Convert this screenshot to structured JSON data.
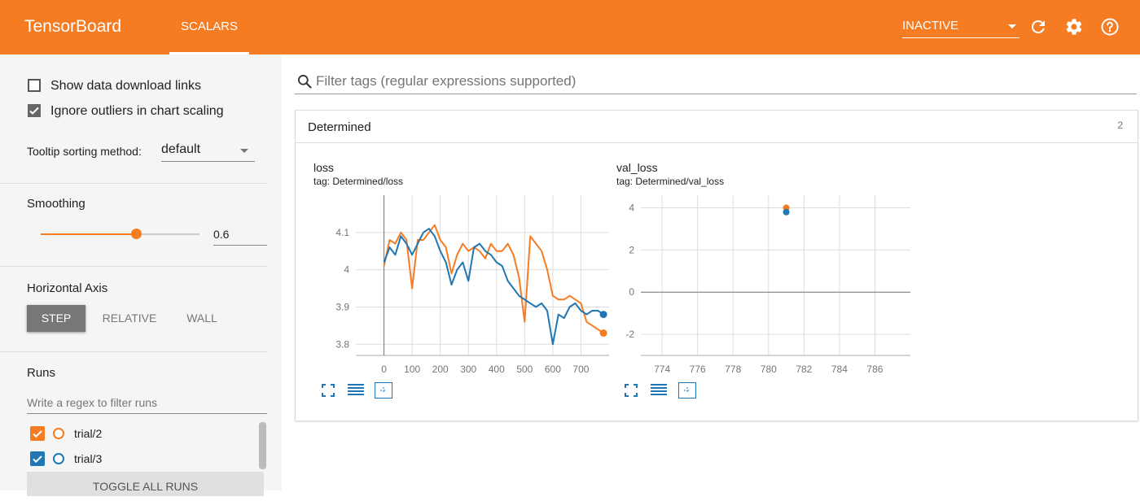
{
  "header": {
    "brand": "TensorBoard",
    "active_tab": "SCALARS",
    "run_state": "INACTIVE",
    "icons": [
      "refresh-icon",
      "settings-icon",
      "help-icon"
    ]
  },
  "sidebar": {
    "show_download_links": {
      "label": "Show data download links",
      "checked": false
    },
    "ignore_outliers": {
      "label": "Ignore outliers in chart scaling",
      "checked": true
    },
    "tooltip_sorting": {
      "label": "Tooltip sorting method:",
      "value": "default"
    },
    "smoothing": {
      "label": "Smoothing",
      "value": "0.6",
      "fraction": 0.6
    },
    "horizontal_axis": {
      "label": "Horizontal Axis",
      "options": [
        "STEP",
        "RELATIVE",
        "WALL"
      ],
      "selected": "STEP"
    },
    "runs": {
      "label": "Runs",
      "filter_placeholder": "Write a regex to filter runs",
      "items": [
        {
          "name": "trial/2",
          "color": "#f57c22",
          "checked": true
        },
        {
          "name": "trial/3",
          "color": "#1f77b4",
          "checked": true
        }
      ],
      "toggle_all": "TOGGLE ALL RUNS"
    }
  },
  "main": {
    "filter_placeholder": "Filter tags (regular expressions supported)",
    "group": {
      "title": "Determined",
      "count": "2"
    }
  },
  "colors": {
    "accent": "#f57c22",
    "trial2": "#f57c22",
    "trial3": "#1f77b4"
  },
  "chart_data": [
    {
      "type": "line",
      "title": "loss",
      "tag": "tag: Determined/loss",
      "x_ticks": [
        "0",
        "100",
        "200",
        "300",
        "400",
        "500",
        "600",
        "700"
      ],
      "y_ticks": [
        "4.1",
        "4",
        "3.9",
        "3.8"
      ],
      "series": [
        {
          "name": "trial/2",
          "color": "#f57c22",
          "x": [
            0,
            20,
            40,
            60,
            80,
            100,
            120,
            140,
            160,
            180,
            200,
            220,
            240,
            260,
            280,
            300,
            320,
            340,
            360,
            380,
            400,
            420,
            440,
            460,
            480,
            500,
            520,
            540,
            560,
            580,
            600,
            620,
            640,
            660,
            680,
            700,
            720,
            740,
            760,
            780
          ],
          "y": [
            4.01,
            4.08,
            4.07,
            4.1,
            4.08,
            3.95,
            4.08,
            4.08,
            4.1,
            4.12,
            4.08,
            4.06,
            3.99,
            4.04,
            4.07,
            4.05,
            4.06,
            4.05,
            4.03,
            4.07,
            4.05,
            4.05,
            4.07,
            4.04,
            3.98,
            3.86,
            4.09,
            4.07,
            4.05,
            4.0,
            3.93,
            3.92,
            3.92,
            3.93,
            3.92,
            3.91,
            3.86,
            3.85,
            3.84,
            3.83
          ]
        },
        {
          "name": "trial/3",
          "color": "#1f77b4",
          "x": [
            0,
            20,
            40,
            60,
            80,
            100,
            120,
            140,
            160,
            180,
            200,
            220,
            240,
            260,
            280,
            300,
            320,
            340,
            360,
            380,
            400,
            420,
            440,
            460,
            480,
            500,
            520,
            540,
            560,
            580,
            600,
            620,
            640,
            660,
            680,
            700,
            720,
            740,
            760,
            780
          ],
          "y": [
            4.02,
            4.06,
            4.04,
            4.09,
            4.07,
            4.04,
            4.07,
            4.1,
            4.11,
            4.09,
            4.05,
            4.02,
            3.96,
            4.0,
            4.02,
            3.97,
            4.06,
            4.07,
            4.05,
            4.04,
            4.02,
            4.01,
            3.97,
            3.95,
            3.93,
            3.92,
            3.91,
            3.9,
            3.91,
            3.89,
            3.8,
            3.88,
            3.87,
            3.9,
            3.91,
            3.89,
            3.88,
            3.89,
            3.89,
            3.88
          ]
        }
      ],
      "xlim": [
        -100,
        800
      ],
      "ylim": [
        3.77,
        4.2
      ]
    },
    {
      "type": "scatter",
      "title": "val_loss",
      "tag": "tag: Determined/val_loss",
      "x_ticks": [
        "774",
        "776",
        "778",
        "780",
        "782",
        "784",
        "786"
      ],
      "y_ticks": [
        "4",
        "2",
        "0",
        "-2"
      ],
      "series": [
        {
          "name": "trial/2",
          "color": "#f57c22",
          "x": [
            781
          ],
          "y": [
            4.0
          ]
        },
        {
          "name": "trial/3",
          "color": "#1f77b4",
          "x": [
            781
          ],
          "y": [
            3.8
          ]
        }
      ],
      "xlim": [
        772.8,
        788
      ],
      "ylim": [
        -3,
        4.6
      ]
    }
  ]
}
